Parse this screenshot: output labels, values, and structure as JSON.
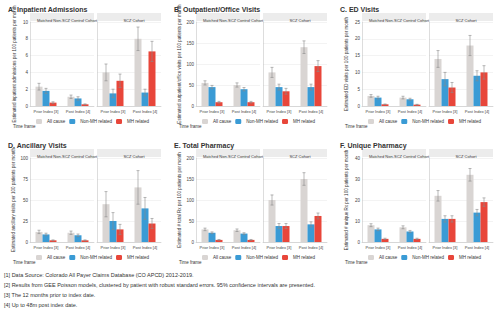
{
  "chart_data": [
    {
      "type": "bar",
      "title": "A. Inpatient Admissions",
      "y_label": "Estimated inpatient admissions per 100 patients per month",
      "legend_title": "Time frame",
      "categories": [
        "Prior Index [3]",
        "Post Index [4]"
      ],
      "ylim": [
        0,
        10
      ],
      "yticks": [
        0,
        2,
        4,
        6,
        8,
        10
      ],
      "grid": true,
      "panels": [
        {
          "title": "Matched Non-SCZ Control Cohort",
          "series": [
            {
              "name": "All cause",
              "color": "#d9d5d3",
              "values": [
                2.3,
                1.1
              ],
              "ci_low": [
                1.9,
                0.9
              ],
              "ci_high": [
                2.7,
                1.3
              ]
            },
            {
              "name": "Non-MH related",
              "color": "#3a9bd5",
              "values": [
                1.8,
                0.9
              ],
              "ci_low": [
                1.5,
                0.7
              ],
              "ci_high": [
                2.1,
                1.1
              ]
            },
            {
              "name": "MH related",
              "color": "#e8463a",
              "values": [
                0.4,
                0.2
              ],
              "ci_low": [
                0.3,
                0.15
              ],
              "ci_high": [
                0.5,
                0.25
              ]
            }
          ]
        },
        {
          "title": "SCZ Cohort",
          "series": [
            {
              "name": "All cause",
              "color": "#d9d5d3",
              "values": [
                4.0,
                8.0
              ],
              "ci_low": [
                3.0,
                6.6
              ],
              "ci_high": [
                5.0,
                9.4
              ]
            },
            {
              "name": "Non-MH related",
              "color": "#3a9bd5",
              "values": [
                1.5,
                1.6
              ],
              "ci_low": [
                1.0,
                1.2
              ],
              "ci_high": [
                2.0,
                2.0
              ]
            },
            {
              "name": "MH related",
              "color": "#e8463a",
              "values": [
                3.0,
                6.5
              ],
              "ci_low": [
                2.2,
                5.3
              ],
              "ci_high": [
                3.8,
                7.7
              ]
            }
          ]
        }
      ]
    },
    {
      "type": "bar",
      "title": "B. Outpatient/Office Visits",
      "y_label": "Estimated outpatient/office visits per 100 patients per month",
      "legend_title": "Time frame",
      "categories": [
        "Prior Index [3]",
        "Post Index [4]"
      ],
      "ylim": [
        0,
        200
      ],
      "yticks": [
        0,
        50,
        100,
        150,
        200
      ],
      "grid": true,
      "panels": [
        {
          "title": "Matched Non-SCZ Control Cohort",
          "series": [
            {
              "name": "All cause",
              "color": "#d9d5d3",
              "values": [
                55,
                50
              ],
              "ci_low": [
                50,
                45
              ],
              "ci_high": [
                60,
                55
              ]
            },
            {
              "name": "Non-MH related",
              "color": "#3a9bd5",
              "values": [
                45,
                40
              ],
              "ci_low": [
                41,
                36
              ],
              "ci_high": [
                49,
                44
              ]
            },
            {
              "name": "MH related",
              "color": "#e8463a",
              "values": [
                9,
                9
              ],
              "ci_low": [
                7,
                7
              ],
              "ci_high": [
                11,
                11
              ]
            }
          ]
        },
        {
          "title": "SCZ Cohort",
          "series": [
            {
              "name": "All cause",
              "color": "#d9d5d3",
              "values": [
                80,
                140
              ],
              "ci_low": [
                68,
                125
              ],
              "ci_high": [
                92,
                155
              ]
            },
            {
              "name": "Non-MH related",
              "color": "#3a9bd5",
              "values": [
                45,
                45
              ],
              "ci_low": [
                38,
                38
              ],
              "ci_high": [
                52,
                52
              ]
            },
            {
              "name": "MH related",
              "color": "#e8463a",
              "values": [
                35,
                95
              ],
              "ci_low": [
                28,
                82
              ],
              "ci_high": [
                42,
                108
              ]
            }
          ]
        }
      ]
    },
    {
      "type": "bar",
      "title": "C. ED Visits",
      "y_label": "Estimated ED visits per 100 patients per month",
      "legend_title": "Time frame",
      "categories": [
        "Prior Index [3]",
        "Post Index [4]"
      ],
      "ylim": [
        0,
        25
      ],
      "yticks": [
        0,
        5,
        10,
        15,
        20,
        25
      ],
      "grid": true,
      "panels": [
        {
          "title": "Matched Non-SCZ Control Cohort",
          "series": [
            {
              "name": "All cause",
              "color": "#d9d5d3",
              "values": [
                3.0,
                2.5
              ],
              "ci_low": [
                2.6,
                2.1
              ],
              "ci_high": [
                3.4,
                2.9
              ]
            },
            {
              "name": "Non-MH related",
              "color": "#3a9bd5",
              "values": [
                2.5,
                2.0
              ],
              "ci_low": [
                2.1,
                1.7
              ],
              "ci_high": [
                2.9,
                2.3
              ]
            },
            {
              "name": "MH related",
              "color": "#e8463a",
              "values": [
                0.5,
                0.4
              ],
              "ci_low": [
                0.4,
                0.3
              ],
              "ci_high": [
                0.6,
                0.5
              ]
            }
          ]
        },
        {
          "title": "SCZ Cohort",
          "series": [
            {
              "name": "All cause",
              "color": "#d9d5d3",
              "values": [
                14,
                18
              ],
              "ci_low": [
                11.5,
                15
              ],
              "ci_high": [
                16.5,
                21
              ]
            },
            {
              "name": "Non-MH related",
              "color": "#3a9bd5",
              "values": [
                8,
                9
              ],
              "ci_low": [
                6,
                7.5
              ],
              "ci_high": [
                10,
                10.5
              ]
            },
            {
              "name": "MH related",
              "color": "#e8463a",
              "values": [
                5.5,
                10
              ],
              "ci_low": [
                4,
                8
              ],
              "ci_high": [
                7,
                12
              ]
            }
          ]
        }
      ]
    },
    {
      "type": "bar",
      "title": "D. Ancillary Visits",
      "y_label": "Estimated ancillary visits per 100 patients per month",
      "legend_title": "Time frame",
      "categories": [
        "Prior Index [3]",
        "Post Index [4]"
      ],
      "ylim": [
        0,
        100
      ],
      "yticks": [
        0,
        25,
        50,
        75,
        100
      ],
      "grid": true,
      "panels": [
        {
          "title": "Matched Non-SCZ Control Cohort",
          "series": [
            {
              "name": "All cause",
              "color": "#d9d5d3",
              "values": [
                12,
                11
              ],
              "ci_low": [
                10,
                9
              ],
              "ci_high": [
                14,
                13
              ]
            },
            {
              "name": "Non-MH related",
              "color": "#3a9bd5",
              "values": [
                9,
                8
              ],
              "ci_low": [
                7.5,
                6.5
              ],
              "ci_high": [
                10.5,
                9.5
              ]
            },
            {
              "name": "MH related",
              "color": "#e8463a",
              "values": [
                2,
                2
              ],
              "ci_low": [
                1.5,
                1.5
              ],
              "ci_high": [
                2.5,
                2.5
              ]
            }
          ]
        },
        {
          "title": "SCZ Cohort",
          "series": [
            {
              "name": "All cause",
              "color": "#d9d5d3",
              "values": [
                45,
                65
              ],
              "ci_low": [
                30,
                45
              ],
              "ci_high": [
                60,
                85
              ]
            },
            {
              "name": "Non-MH related",
              "color": "#3a9bd5",
              "values": [
                25,
                40
              ],
              "ci_low": [
                15,
                27
              ],
              "ci_high": [
                35,
                53
              ]
            },
            {
              "name": "MH related",
              "color": "#e8463a",
              "values": [
                15,
                22
              ],
              "ci_low": [
                9,
                16
              ],
              "ci_high": [
                21,
                28
              ]
            }
          ]
        }
      ]
    },
    {
      "type": "bar",
      "title": "E. Total Pharmacy",
      "y_label": "Estimated # total Rx per 100 patients per month",
      "legend_title": "Time frame",
      "categories": [
        "Prior Index [3]",
        "Post Index [4]"
      ],
      "ylim": [
        0,
        200
      ],
      "yticks": [
        0,
        50,
        100,
        150,
        200
      ],
      "grid": true,
      "panels": [
        {
          "title": "Matched Non-SCZ Control Cohort",
          "series": [
            {
              "name": "All cause",
              "color": "#d9d5d3",
              "values": [
                30,
                28
              ],
              "ci_low": [
                27,
                25
              ],
              "ci_high": [
                33,
                31
              ]
            },
            {
              "name": "Non-MH related",
              "color": "#3a9bd5",
              "values": [
                22,
                20
              ],
              "ci_low": [
                20,
                18
              ],
              "ci_high": [
                24,
                22
              ]
            },
            {
              "name": "MH related",
              "color": "#e8463a",
              "values": [
                5,
                5
              ],
              "ci_low": [
                4,
                4
              ],
              "ci_high": [
                6,
                6
              ]
            }
          ]
        },
        {
          "title": "SCZ Cohort",
          "series": [
            {
              "name": "All cause",
              "color": "#d9d5d3",
              "values": [
                100,
                150
              ],
              "ci_low": [
                88,
                135
              ],
              "ci_high": [
                112,
                165
              ]
            },
            {
              "name": "Non-MH related",
              "color": "#3a9bd5",
              "values": [
                38,
                42
              ],
              "ci_low": [
                32,
                36
              ],
              "ci_high": [
                44,
                48
              ]
            },
            {
              "name": "MH related",
              "color": "#e8463a",
              "values": [
                38,
                62
              ],
              "ci_low": [
                32,
                55
              ],
              "ci_high": [
                44,
                69
              ]
            }
          ]
        }
      ]
    },
    {
      "type": "bar",
      "title": "F. Unique Pharmacy",
      "y_label": "Estimated # unique Rx per 100 patients per month",
      "legend_title": "Time frame",
      "categories": [
        "Prior Index [3]",
        "Post Index [4]"
      ],
      "ylim": [
        0,
        40
      ],
      "yticks": [
        0,
        10,
        20,
        30,
        40
      ],
      "grid": true,
      "panels": [
        {
          "title": "Matched Non-SCZ Control Cohort",
          "series": [
            {
              "name": "All cause",
              "color": "#d9d5d3",
              "values": [
                8,
                7
              ],
              "ci_low": [
                7.3,
                6.3
              ],
              "ci_high": [
                8.7,
                7.7
              ]
            },
            {
              "name": "Non-MH related",
              "color": "#3a9bd5",
              "values": [
                6,
                5
              ],
              "ci_low": [
                5.4,
                4.5
              ],
              "ci_high": [
                6.6,
                5.5
              ]
            },
            {
              "name": "MH related",
              "color": "#e8463a",
              "values": [
                1.5,
                1.5
              ],
              "ci_low": [
                1.2,
                1.2
              ],
              "ci_high": [
                1.8,
                1.8
              ]
            }
          ]
        },
        {
          "title": "SCZ Cohort",
          "series": [
            {
              "name": "All cause",
              "color": "#d9d5d3",
              "values": [
                22,
                32
              ],
              "ci_low": [
                19.5,
                29
              ],
              "ci_high": [
                24.5,
                35
              ]
            },
            {
              "name": "Non-MH related",
              "color": "#3a9bd5",
              "values": [
                11,
                14
              ],
              "ci_low": [
                9.5,
                12.5
              ],
              "ci_high": [
                12.5,
                15.5
              ]
            },
            {
              "name": "MH related",
              "color": "#e8463a",
              "values": [
                11,
                19
              ],
              "ci_low": [
                9.5,
                17
              ],
              "ci_high": [
                12.5,
                21
              ]
            }
          ]
        }
      ]
    }
  ],
  "footnotes": [
    "[1] Data Source: Colorado All Payer Claims Database (CO APCD) 2012-2019.",
    "[2] Results from GEE Poisson models, clustered by patient with robust standard errors. 95% confidence intervals are presented.",
    "[3] The 12 months prior to index date.",
    "[4] Up to 48m post index date."
  ]
}
